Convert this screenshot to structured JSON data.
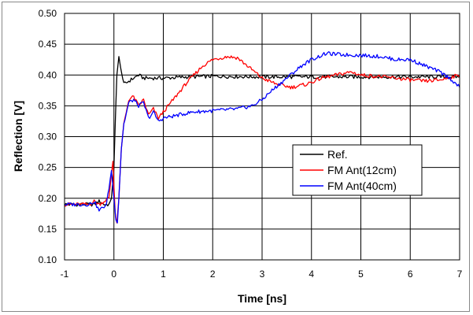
{
  "chart_data": {
    "type": "line",
    "title": "",
    "xlabel": "Time [ns]",
    "ylabel": "Reflection [V]",
    "xlim": [
      -1,
      7
    ],
    "ylim": [
      0.1,
      0.5
    ],
    "xticks": [
      "-1",
      "0",
      "1",
      "2",
      "3",
      "4",
      "5",
      "6",
      "7"
    ],
    "yticks": [
      "0.10",
      "0.15",
      "0.20",
      "0.25",
      "0.30",
      "0.35",
      "0.40",
      "0.45",
      "0.50"
    ],
    "grid": true,
    "legend_position": "center-right",
    "series": [
      {
        "name": "Ref.",
        "color": "#000000",
        "points": [
          [
            -1.0,
            0.19
          ],
          [
            -0.8,
            0.19
          ],
          [
            -0.6,
            0.19
          ],
          [
            -0.4,
            0.19
          ],
          [
            -0.3,
            0.195
          ],
          [
            -0.2,
            0.19
          ],
          [
            -0.1,
            0.19
          ],
          [
            -0.05,
            0.2
          ],
          [
            0.0,
            0.25
          ],
          [
            0.03,
            0.33
          ],
          [
            0.06,
            0.4
          ],
          [
            0.1,
            0.43
          ],
          [
            0.14,
            0.41
          ],
          [
            0.2,
            0.385
          ],
          [
            0.3,
            0.39
          ],
          [
            0.4,
            0.395
          ],
          [
            0.5,
            0.4
          ],
          [
            0.6,
            0.395
          ],
          [
            0.8,
            0.395
          ],
          [
            1.0,
            0.395
          ],
          [
            1.5,
            0.397
          ],
          [
            2.0,
            0.398
          ],
          [
            3.0,
            0.397
          ],
          [
            4.0,
            0.397
          ],
          [
            5.0,
            0.397
          ],
          [
            6.0,
            0.397
          ],
          [
            7.0,
            0.397
          ]
        ]
      },
      {
        "name": "FM Ant(12cm)",
        "color": "#ff0000",
        "points": [
          [
            -1.0,
            0.19
          ],
          [
            -0.7,
            0.19
          ],
          [
            -0.5,
            0.19
          ],
          [
            -0.4,
            0.195
          ],
          [
            -0.3,
            0.19
          ],
          [
            -0.1,
            0.2
          ],
          [
            -0.05,
            0.24
          ],
          [
            -0.02,
            0.26
          ],
          [
            0.0,
            0.22
          ],
          [
            0.03,
            0.17
          ],
          [
            0.06,
            0.16
          ],
          [
            0.1,
            0.2
          ],
          [
            0.15,
            0.28
          ],
          [
            0.2,
            0.32
          ],
          [
            0.3,
            0.36
          ],
          [
            0.4,
            0.365
          ],
          [
            0.5,
            0.35
          ],
          [
            0.6,
            0.36
          ],
          [
            0.7,
            0.335
          ],
          [
            0.8,
            0.345
          ],
          [
            0.9,
            0.33
          ],
          [
            1.0,
            0.34
          ],
          [
            1.2,
            0.36
          ],
          [
            1.5,
            0.39
          ],
          [
            1.8,
            0.415
          ],
          [
            2.0,
            0.425
          ],
          [
            2.3,
            0.43
          ],
          [
            2.5,
            0.428
          ],
          [
            2.7,
            0.415
          ],
          [
            3.0,
            0.395
          ],
          [
            3.3,
            0.385
          ],
          [
            3.6,
            0.38
          ],
          [
            3.9,
            0.385
          ],
          [
            4.2,
            0.395
          ],
          [
            4.5,
            0.4
          ],
          [
            4.8,
            0.405
          ],
          [
            5.0,
            0.4
          ],
          [
            5.3,
            0.398
          ],
          [
            5.7,
            0.395
          ],
          [
            6.0,
            0.392
          ],
          [
            6.3,
            0.39
          ],
          [
            6.6,
            0.392
          ],
          [
            7.0,
            0.4
          ]
        ]
      },
      {
        "name": "FM Ant(40cm)",
        "color": "#0000ff",
        "points": [
          [
            -1.0,
            0.19
          ],
          [
            -0.7,
            0.19
          ],
          [
            -0.5,
            0.19
          ],
          [
            -0.4,
            0.195
          ],
          [
            -0.3,
            0.18
          ],
          [
            -0.15,
            0.19
          ],
          [
            -0.05,
            0.245
          ],
          [
            0.0,
            0.2
          ],
          [
            0.04,
            0.165
          ],
          [
            0.07,
            0.16
          ],
          [
            0.1,
            0.2
          ],
          [
            0.15,
            0.28
          ],
          [
            0.2,
            0.32
          ],
          [
            0.3,
            0.355
          ],
          [
            0.4,
            0.36
          ],
          [
            0.5,
            0.35
          ],
          [
            0.6,
            0.355
          ],
          [
            0.7,
            0.33
          ],
          [
            0.8,
            0.34
          ],
          [
            0.9,
            0.325
          ],
          [
            1.0,
            0.33
          ],
          [
            1.3,
            0.335
          ],
          [
            1.6,
            0.34
          ],
          [
            2.0,
            0.342
          ],
          [
            2.5,
            0.345
          ],
          [
            2.8,
            0.35
          ],
          [
            3.0,
            0.36
          ],
          [
            3.2,
            0.375
          ],
          [
            3.5,
            0.395
          ],
          [
            3.8,
            0.415
          ],
          [
            4.0,
            0.425
          ],
          [
            4.3,
            0.435
          ],
          [
            4.6,
            0.433
          ],
          [
            5.0,
            0.432
          ],
          [
            5.4,
            0.43
          ],
          [
            5.7,
            0.425
          ],
          [
            6.0,
            0.425
          ],
          [
            6.3,
            0.415
          ],
          [
            6.6,
            0.405
          ],
          [
            6.8,
            0.395
          ],
          [
            7.0,
            0.38
          ]
        ]
      }
    ]
  }
}
